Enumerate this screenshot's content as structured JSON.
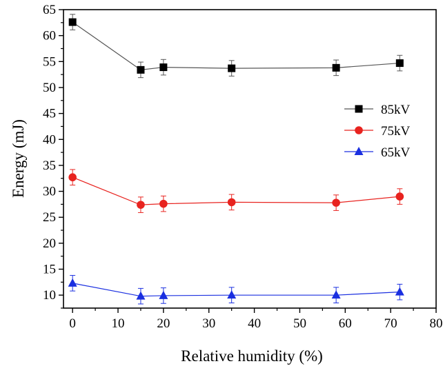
{
  "chart_data": {
    "type": "line",
    "title": "",
    "xlabel": "Relative humidity (%)",
    "ylabel": "Energy (mJ)",
    "xlim": [
      -2,
      80
    ],
    "ylim": [
      7.5,
      65
    ],
    "xticks": [
      0,
      10,
      20,
      30,
      40,
      50,
      60,
      70,
      80
    ],
    "yticks": [
      10,
      15,
      20,
      25,
      30,
      35,
      40,
      45,
      50,
      55,
      60,
      65
    ],
    "x": [
      0,
      15,
      20,
      35,
      58,
      72
    ],
    "legend_position": "right",
    "grid": false,
    "series": [
      {
        "name": "85kV",
        "marker": "square",
        "color": "#000000",
        "line_color": "#555555",
        "values": [
          62.6,
          53.4,
          53.9,
          53.7,
          53.8,
          54.7
        ],
        "errors": [
          1.5,
          1.5,
          1.5,
          1.5,
          1.5,
          1.5
        ]
      },
      {
        "name": "75kV",
        "marker": "circle",
        "color": "#e8231f",
        "line_color": "#e8231f",
        "values": [
          32.7,
          27.4,
          27.6,
          27.9,
          27.8,
          29.0
        ],
        "errors": [
          1.5,
          1.5,
          1.5,
          1.5,
          1.5,
          1.5
        ]
      },
      {
        "name": "65kV",
        "marker": "triangle",
        "color": "#1a2fe0",
        "line_color": "#1a2fe0",
        "values": [
          12.3,
          9.8,
          9.9,
          10.0,
          10.0,
          10.6
        ],
        "errors": [
          1.5,
          1.5,
          1.5,
          1.5,
          1.5,
          1.5
        ]
      }
    ]
  }
}
